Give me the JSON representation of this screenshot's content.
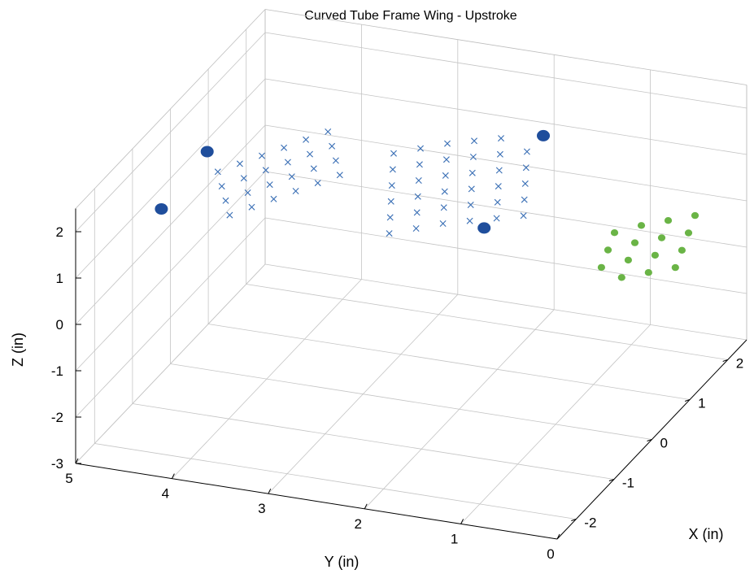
{
  "chart_data": {
    "type": "scatter",
    "dimensions": 3,
    "title": "Curved Tube Frame Wing - Upstroke",
    "xlabel": "X (in)",
    "ylabel": "Y (in)",
    "zlabel": "Z (in)",
    "xlim": [
      -2.5,
      2.5
    ],
    "ylim": [
      0,
      5
    ],
    "zlim": [
      -3,
      2.5
    ],
    "x_ticks": [
      "-2",
      "-1",
      "0",
      "1",
      "2"
    ],
    "y_ticks": [
      "0",
      "1",
      "2",
      "3",
      "4",
      "5"
    ],
    "z_ticks": [
      "-3",
      "-2",
      "-1",
      "0",
      "1",
      "2"
    ],
    "grid": true,
    "series": [
      {
        "marker": "x",
        "color": "#3a6fb5",
        "points": [
          {
            "x": -0.4,
            "y": 4.35,
            "z": 1.7
          },
          {
            "x": -0.2,
            "y": 4.2,
            "z": 1.75
          },
          {
            "x": 0.0,
            "y": 4.05,
            "z": 1.8
          },
          {
            "x": 0.2,
            "y": 3.9,
            "z": 1.85
          },
          {
            "x": 0.4,
            "y": 3.75,
            "z": 1.9
          },
          {
            "x": 0.6,
            "y": 3.6,
            "z": 1.95
          },
          {
            "x": -0.55,
            "y": 4.25,
            "z": 1.55
          },
          {
            "x": -0.35,
            "y": 4.1,
            "z": 1.6
          },
          {
            "x": -0.15,
            "y": 3.95,
            "z": 1.65
          },
          {
            "x": 0.05,
            "y": 3.8,
            "z": 1.7
          },
          {
            "x": 0.25,
            "y": 3.65,
            "z": 1.75
          },
          {
            "x": 0.45,
            "y": 3.5,
            "z": 1.8
          },
          {
            "x": -0.7,
            "y": 4.15,
            "z": 1.4
          },
          {
            "x": -0.5,
            "y": 4.0,
            "z": 1.45
          },
          {
            "x": -0.3,
            "y": 3.85,
            "z": 1.5
          },
          {
            "x": -0.1,
            "y": 3.7,
            "z": 1.55
          },
          {
            "x": 0.1,
            "y": 3.55,
            "z": 1.6
          },
          {
            "x": 0.3,
            "y": 3.4,
            "z": 1.65
          },
          {
            "x": -0.85,
            "y": 4.05,
            "z": 1.25
          },
          {
            "x": -0.65,
            "y": 3.9,
            "z": 1.3
          },
          {
            "x": -0.45,
            "y": 3.75,
            "z": 1.35
          },
          {
            "x": -0.25,
            "y": 3.6,
            "z": 1.4
          },
          {
            "x": -0.05,
            "y": 3.45,
            "z": 1.45
          },
          {
            "x": 0.15,
            "y": 3.3,
            "z": 1.5
          },
          {
            "x": 0.3,
            "y": 2.8,
            "z": 2.0
          },
          {
            "x": 0.5,
            "y": 2.6,
            "z": 2.0
          },
          {
            "x": 0.7,
            "y": 2.4,
            "z": 2.0
          },
          {
            "x": 0.9,
            "y": 2.2,
            "z": 1.95
          },
          {
            "x": 1.1,
            "y": 2.0,
            "z": 1.9
          },
          {
            "x": 0.15,
            "y": 2.75,
            "z": 1.8
          },
          {
            "x": 0.35,
            "y": 2.55,
            "z": 1.8
          },
          {
            "x": 0.55,
            "y": 2.35,
            "z": 1.8
          },
          {
            "x": 0.75,
            "y": 2.15,
            "z": 1.75
          },
          {
            "x": 0.95,
            "y": 1.95,
            "z": 1.7
          },
          {
            "x": 1.15,
            "y": 1.75,
            "z": 1.65
          },
          {
            "x": 0.0,
            "y": 2.7,
            "z": 1.6
          },
          {
            "x": 0.2,
            "y": 2.5,
            "z": 1.6
          },
          {
            "x": 0.4,
            "y": 2.3,
            "z": 1.6
          },
          {
            "x": 0.6,
            "y": 2.1,
            "z": 1.55
          },
          {
            "x": 0.8,
            "y": 1.9,
            "z": 1.5
          },
          {
            "x": 1.0,
            "y": 1.7,
            "z": 1.45
          },
          {
            "x": -0.15,
            "y": 2.65,
            "z": 1.4
          },
          {
            "x": 0.05,
            "y": 2.45,
            "z": 1.4
          },
          {
            "x": 0.25,
            "y": 2.25,
            "z": 1.4
          },
          {
            "x": 0.45,
            "y": 2.05,
            "z": 1.35
          },
          {
            "x": 0.65,
            "y": 1.85,
            "z": 1.3
          },
          {
            "x": 0.85,
            "y": 1.65,
            "z": 1.25
          },
          {
            "x": -0.3,
            "y": 2.6,
            "z": 1.2
          },
          {
            "x": -0.1,
            "y": 2.4,
            "z": 1.2
          },
          {
            "x": 0.1,
            "y": 2.2,
            "z": 1.2
          },
          {
            "x": 0.3,
            "y": 2.0,
            "z": 1.15
          },
          {
            "x": 0.5,
            "y": 1.8,
            "z": 1.1
          },
          {
            "x": 0.7,
            "y": 1.6,
            "z": 1.05
          },
          {
            "x": -0.45,
            "y": 2.55,
            "z": 1.0
          },
          {
            "x": -0.25,
            "y": 2.35,
            "z": 1.0
          },
          {
            "x": -0.05,
            "y": 2.15,
            "z": 1.0
          },
          {
            "x": 0.15,
            "y": 1.95,
            "z": 0.95
          },
          {
            "x": 0.35,
            "y": 1.75,
            "z": 0.9
          },
          {
            "x": 0.55,
            "y": 1.55,
            "z": 0.85
          }
        ]
      },
      {
        "marker": "o-large",
        "color": "#1f4e9c",
        "points": [
          {
            "x": -0.3,
            "y": 4.5,
            "z": 2.0
          },
          {
            "x": -1.0,
            "y": 4.7,
            "z": 1.3
          },
          {
            "x": 1.2,
            "y": 1.6,
            "z": 2.0
          },
          {
            "x": 0.4,
            "y": 1.9,
            "z": 0.6
          }
        ]
      },
      {
        "marker": "o-small",
        "color": "#6ab446",
        "points": [
          {
            "x": 1.9,
            "y": 0.3,
            "z": 0.1
          },
          {
            "x": 1.7,
            "y": 0.5,
            "z": 0.1
          },
          {
            "x": 1.5,
            "y": 0.7,
            "z": 0.1
          },
          {
            "x": 1.3,
            "y": 0.9,
            "z": 0.05
          },
          {
            "x": 1.6,
            "y": 0.25,
            "z": 0.0
          },
          {
            "x": 1.4,
            "y": 0.45,
            "z": 0.0
          },
          {
            "x": 1.2,
            "y": 0.65,
            "z": 0.0
          },
          {
            "x": 1.0,
            "y": 0.85,
            "z": -0.05
          },
          {
            "x": 1.3,
            "y": 0.2,
            "z": -0.1
          },
          {
            "x": 1.1,
            "y": 0.4,
            "z": -0.1
          },
          {
            "x": 0.9,
            "y": 0.6,
            "z": -0.1
          },
          {
            "x": 0.7,
            "y": 0.8,
            "z": -0.15
          },
          {
            "x": 1.0,
            "y": 0.15,
            "z": -0.2
          },
          {
            "x": 0.8,
            "y": 0.35,
            "z": -0.2
          },
          {
            "x": 0.6,
            "y": 0.55,
            "z": -0.2
          }
        ]
      }
    ]
  }
}
